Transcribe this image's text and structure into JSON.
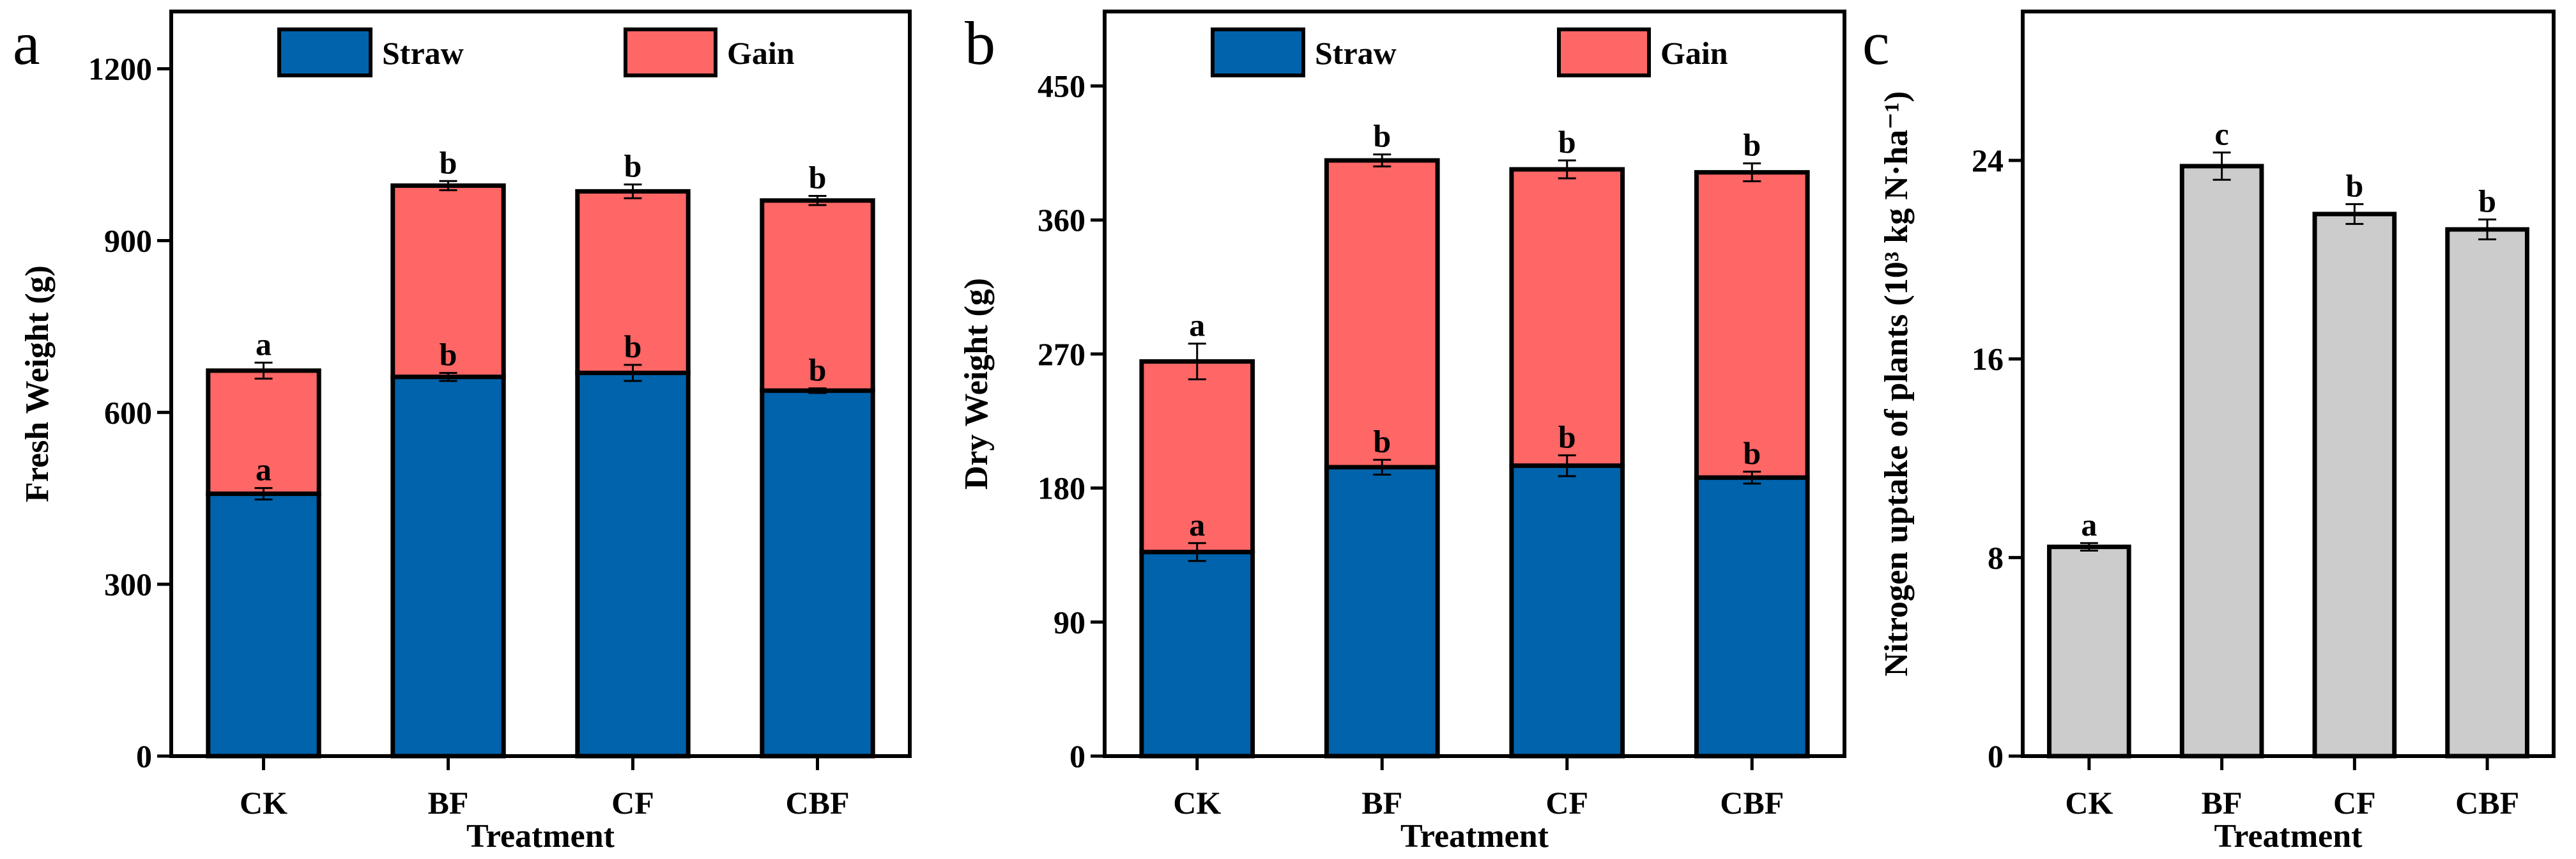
{
  "colors": {
    "straw": "#0063AC",
    "gain": "#FF6666",
    "single": "#CCCCCC",
    "stroke": "#000000"
  },
  "chart_data": [
    {
      "panel": "a",
      "type": "bar",
      "stacked": true,
      "categories": [
        "CK",
        "BF",
        "CF",
        "CBF"
      ],
      "xlabel": "Treatment",
      "ylabel": "Fresh Weight (g)",
      "ylim": [
        0,
        1300
      ],
      "yticks": [
        0,
        300,
        600,
        900,
        1200
      ],
      "legend": [
        "Straw",
        "Gain"
      ],
      "legend_position": "top",
      "series": [
        {
          "name": "Straw",
          "values": [
            458,
            662,
            669,
            638
          ],
          "errors": [
            10,
            7,
            14,
            4
          ],
          "letters": [
            "a",
            "b",
            "b",
            "b"
          ]
        },
        {
          "name": "Gain",
          "cumulative_totals": [
            673,
            996,
            986,
            970
          ],
          "errors": [
            14,
            8,
            12,
            8
          ],
          "letters": [
            "a",
            "b",
            "b",
            "b"
          ]
        }
      ]
    },
    {
      "panel": "b",
      "type": "bar",
      "stacked": true,
      "categories": [
        "CK",
        "BF",
        "CF",
        "CBF"
      ],
      "xlabel": "Treatment",
      "ylabel": "Dry Weight (g)",
      "ylim": [
        0,
        500
      ],
      "yticks": [
        0,
        90,
        180,
        270,
        360,
        450
      ],
      "legend": [
        "Straw",
        "Gain"
      ],
      "legend_position": "top",
      "series": [
        {
          "name": "Straw",
          "values": [
            137,
            194,
            195,
            187
          ],
          "errors": [
            6,
            5,
            7,
            4
          ],
          "letters": [
            "a",
            "b",
            "b",
            "b"
          ]
        },
        {
          "name": "Gain",
          "cumulative_totals": [
            265,
            400,
            394,
            392
          ],
          "errors": [
            12,
            4,
            6,
            6
          ],
          "letters": [
            "a",
            "b",
            "b",
            "b"
          ]
        }
      ]
    },
    {
      "panel": "c",
      "type": "bar",
      "stacked": false,
      "categories": [
        "CK",
        "BF",
        "CF",
        "CBF"
      ],
      "xlabel": "Treatment",
      "ylabel": "Nitrogen uptake of plants (10³ kg N·ha⁻¹)",
      "ylim": [
        0,
        30
      ],
      "yticks": [
        0,
        8,
        16,
        24
      ],
      "series": [
        {
          "name": "N uptake",
          "values": [
            8.43,
            23.77,
            21.84,
            21.22
          ],
          "errors": [
            0.15,
            0.55,
            0.4,
            0.4
          ],
          "letters": [
            "a",
            "c",
            "b",
            "b"
          ]
        }
      ]
    }
  ]
}
